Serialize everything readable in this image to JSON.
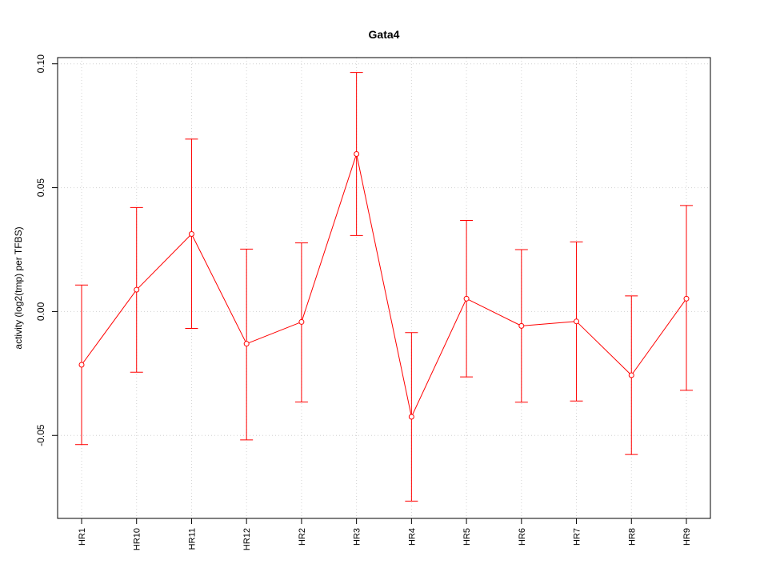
{
  "chart_data": {
    "type": "line",
    "title": "Gata4",
    "xlabel": "",
    "ylabel": "activity (log2(tmp) per TFBS)",
    "categories": [
      "HR1",
      "HR10",
      "HR11",
      "HR12",
      "HR2",
      "HR3",
      "HR4",
      "HR5",
      "HR6",
      "HR7",
      "HR8",
      "HR9"
    ],
    "series": [
      {
        "values": [
          -0.0215,
          0.0088,
          0.0313,
          -0.013,
          -0.0042,
          0.0636,
          -0.0425,
          0.0052,
          -0.0058,
          -0.004,
          -0.0257,
          0.0052
        ],
        "upper": [
          0.0107,
          0.042,
          0.0696,
          0.0252,
          0.0277,
          0.0965,
          -0.0085,
          0.0368,
          0.025,
          0.0281,
          0.0063,
          0.0428
        ],
        "lower": [
          -0.0537,
          -0.0245,
          -0.0068,
          -0.0518,
          -0.0365,
          0.0307,
          -0.0765,
          -0.0264,
          -0.0366,
          -0.0361,
          -0.0577,
          -0.0318
        ],
        "color": "#ff0000"
      }
    ],
    "yticks": [
      -0.05,
      0.0,
      0.05,
      0.1
    ],
    "ytick_labels": [
      "-0.05",
      "0.00",
      "0.05",
      "0.10"
    ],
    "ylim": [
      -0.0835,
      0.1025
    ],
    "grid": true,
    "grid_color": "#d3d3d3",
    "legend": "none"
  }
}
